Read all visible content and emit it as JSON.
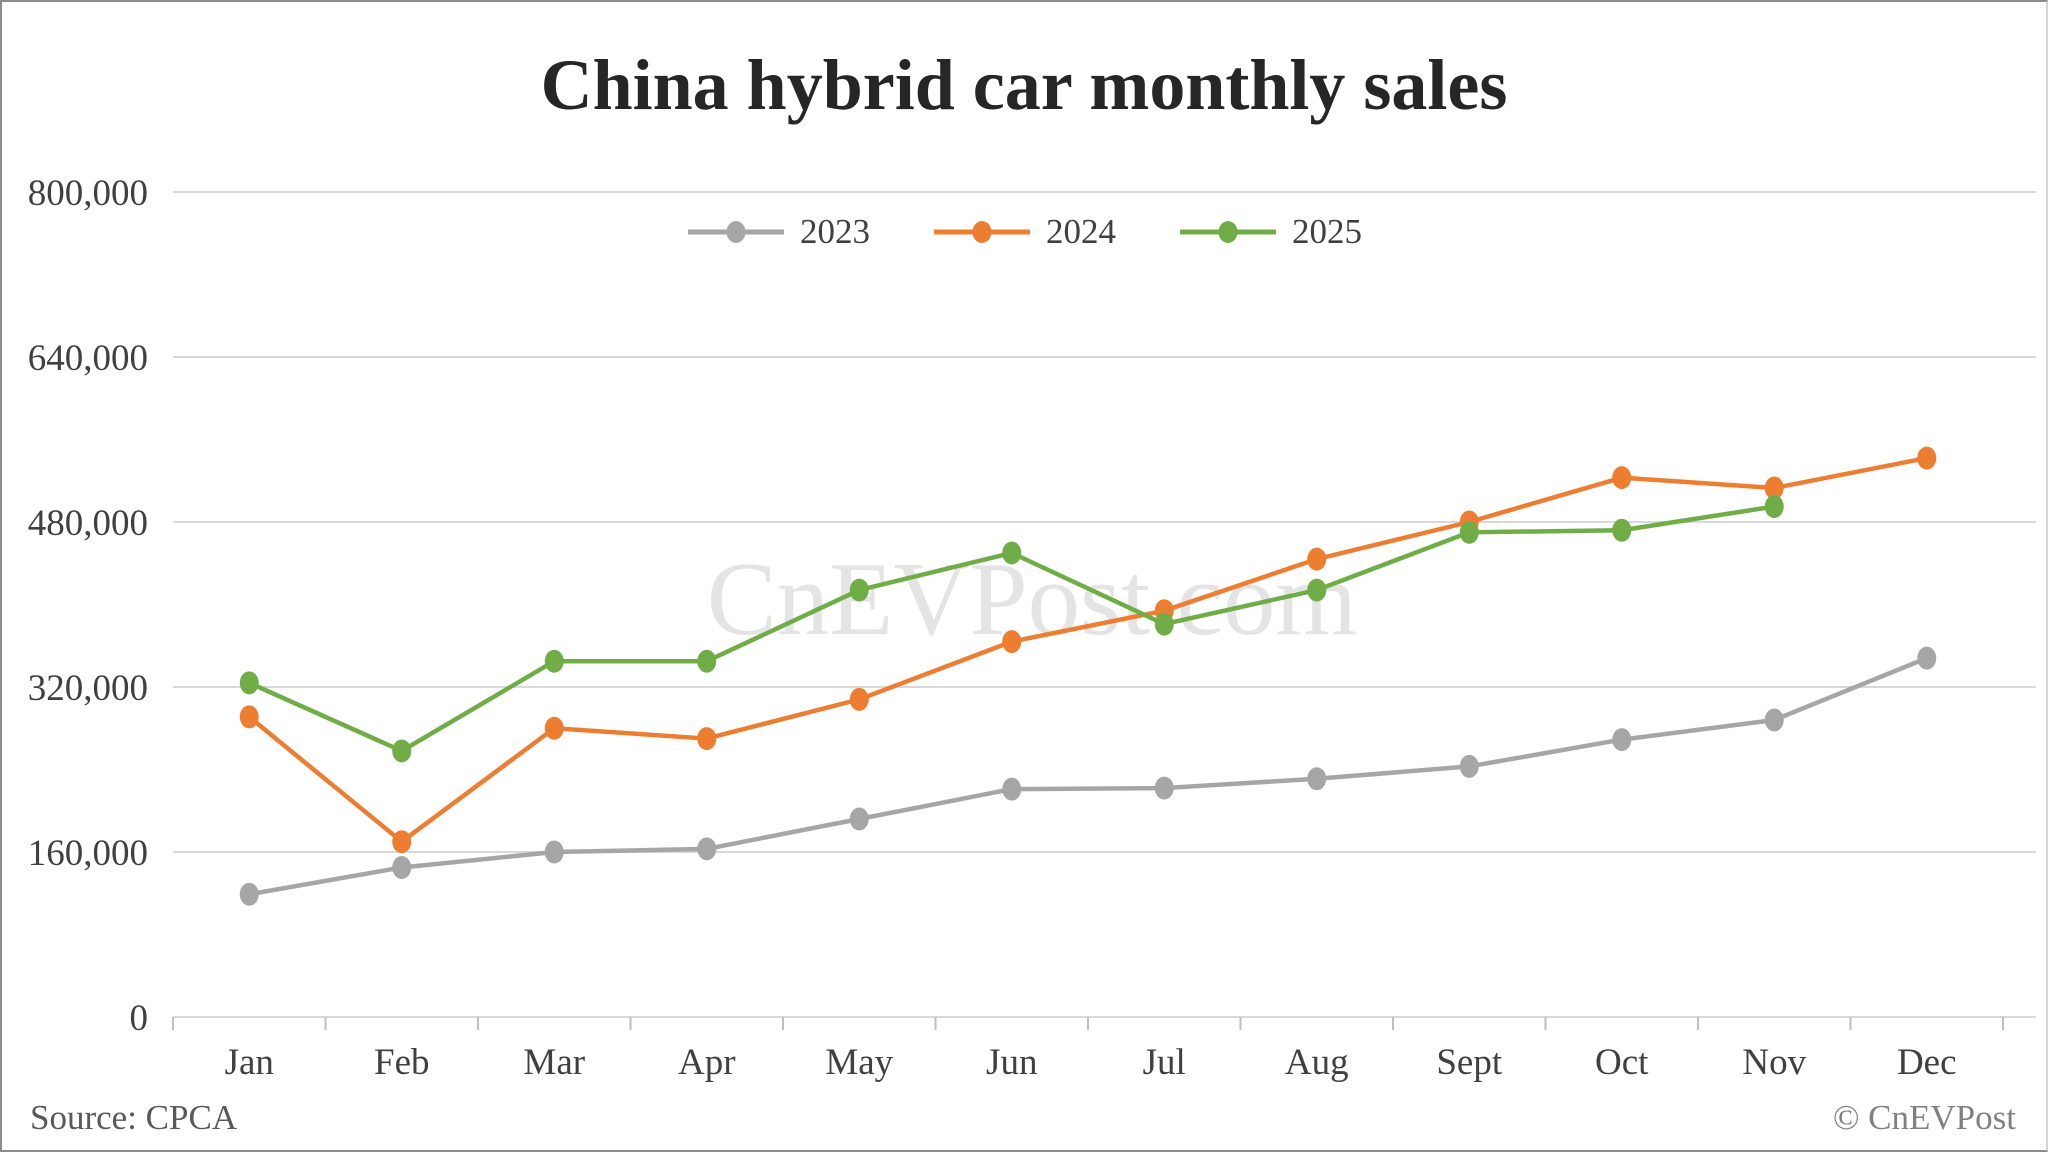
{
  "page": {
    "title": "China hybrid car monthly sales",
    "source": "Source: CPCA",
    "copyright": "© CnEVPost",
    "watermark": "CnEVPost.com"
  },
  "colors": {
    "grid": "#d9d9d9",
    "tick": "#bfbfbf",
    "axis_label": "#404040",
    "watermark": "#e4e4e4",
    "series_2023": "#a6a6a6",
    "series_2024": "#ed7d31",
    "series_2025": "#70ad47"
  },
  "chart_data": {
    "type": "line",
    "title": "China hybrid car monthly sales",
    "xlabel": "",
    "ylabel": "",
    "categories": [
      "Jan",
      "Feb",
      "Mar",
      "Apr",
      "May",
      "Jun",
      "Jul",
      "Aug",
      "Sept",
      "Oct",
      "Nov",
      "Dec"
    ],
    "y_axis": {
      "min": 0,
      "max": 800000,
      "tick_interval": 160000,
      "tick_labels": [
        "0",
        "160,000",
        "320,000",
        "480,000",
        "640,000",
        "800,000"
      ]
    },
    "grid": true,
    "legend_position": "top",
    "series": [
      {
        "name": "2023",
        "color": "#a6a6a6",
        "values": [
          119000,
          145000,
          160000,
          163000,
          192000,
          221000,
          222000,
          231000,
          243000,
          269000,
          288000,
          348000
        ]
      },
      {
        "name": "2024",
        "color": "#ed7d31",
        "values": [
          291000,
          170000,
          280000,
          270000,
          308000,
          364000,
          394000,
          444000,
          480000,
          523000,
          513000,
          542000
        ]
      },
      {
        "name": "2025",
        "color": "#70ad47",
        "values": [
          324000,
          258000,
          345000,
          345000,
          414000,
          450000,
          381000,
          414000,
          470000,
          472000,
          495000,
          null
        ]
      }
    ]
  }
}
